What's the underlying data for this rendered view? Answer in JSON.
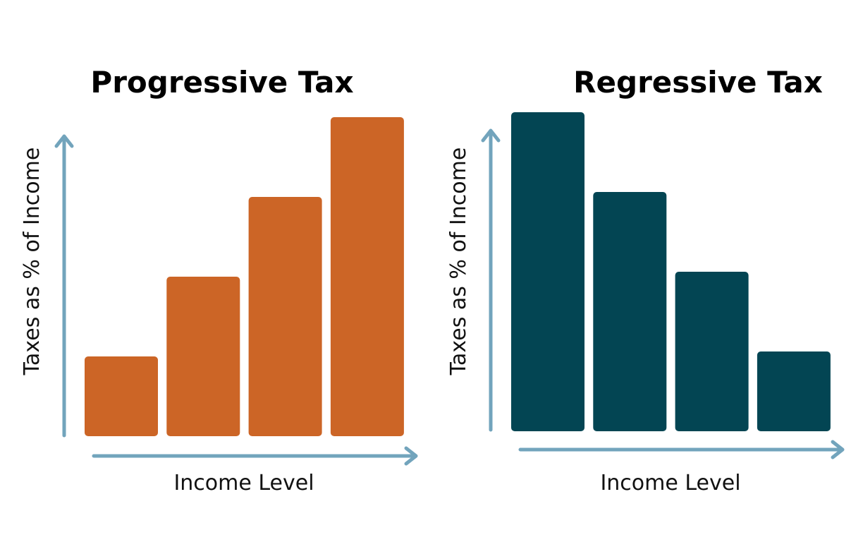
{
  "chart_data": [
    {
      "type": "bar",
      "title": "Progressive Tax",
      "xlabel": "Income Level",
      "ylabel": "Taxes as % of Income",
      "categories": [
        "",
        "",
        "",
        ""
      ],
      "values": [
        1,
        2,
        3,
        4
      ],
      "ylim": [
        0,
        4
      ],
      "grid": false,
      "bar_color": "#cc6526",
      "axis_color": "#72a4bc"
    },
    {
      "type": "bar",
      "title": "Regressive Tax",
      "xlabel": "Income Level",
      "ylabel": "Taxes as % of Income",
      "categories": [
        "",
        "",
        "",
        ""
      ],
      "values": [
        4,
        3,
        2,
        1
      ],
      "ylim": [
        0,
        4
      ],
      "grid": false,
      "bar_color": "#034553",
      "axis_color": "#72a4bc"
    }
  ]
}
